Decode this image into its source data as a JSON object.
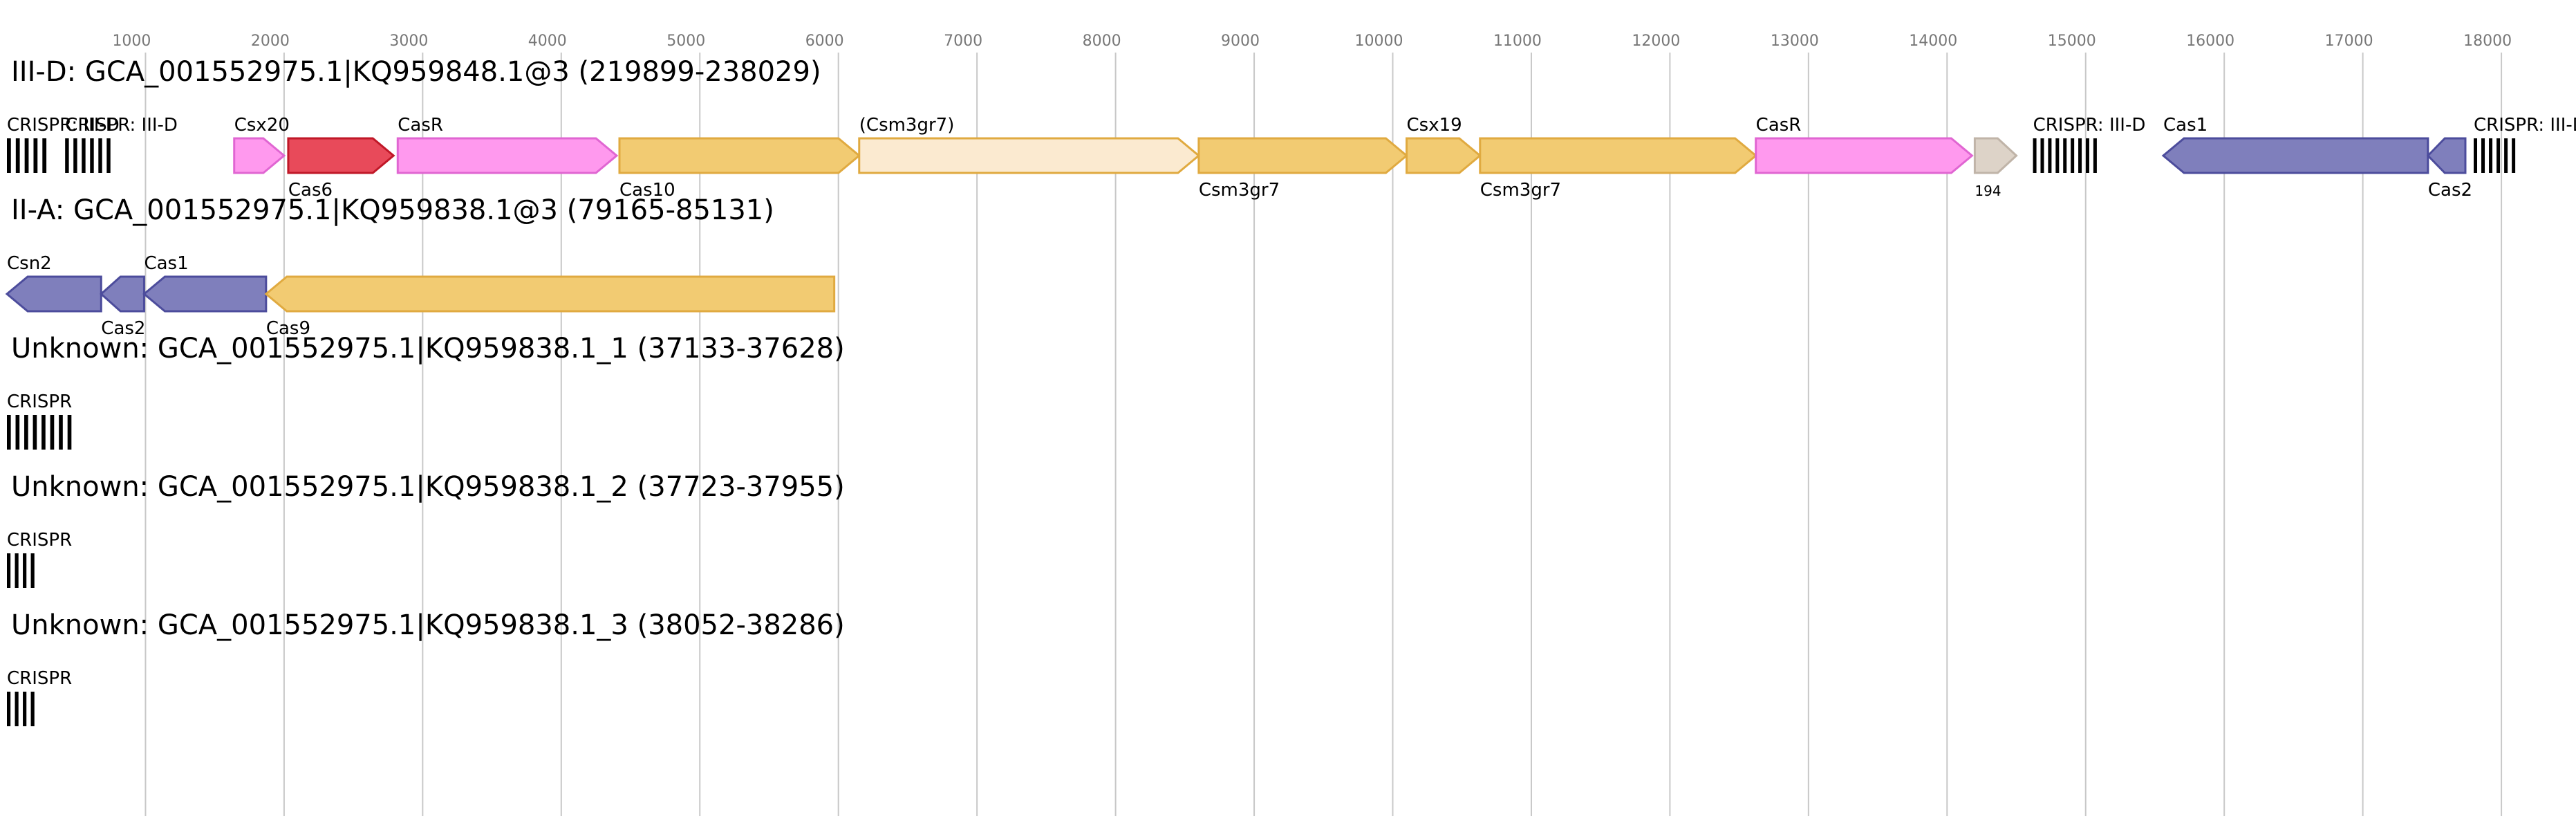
{
  "chart_data": {
    "type": "diagram",
    "x_axis": {
      "ticks": [
        1000,
        2000,
        3000,
        4000,
        5000,
        6000,
        7000,
        8000,
        9000,
        10000,
        11000,
        12000,
        13000,
        14000,
        15000,
        16000,
        17000,
        18000
      ],
      "range": [
        -50,
        18500
      ],
      "grid": true
    },
    "colors": {
      "blue": {
        "fill": "#7f7fbc",
        "stroke": "#4c4c9c"
      },
      "gold": {
        "fill": "#f2cb72",
        "stroke": "#e0aa40"
      },
      "gold_light": {
        "fill": "#fbead0",
        "stroke": "#e0aa40"
      },
      "pink": {
        "fill": "#ff99ee",
        "stroke": "#e066d2"
      },
      "red": {
        "fill": "#e84a5a",
        "stroke": "#c01828"
      },
      "beige": {
        "fill": "#ddd3c8",
        "stroke": "#c0b4a8"
      }
    },
    "rows": [
      {
        "title": "III-D: GCA_001552975.1|KQ959848.1@3 (219899-238029)",
        "features": [
          {
            "kind": "crispr",
            "start": 0,
            "end": 320,
            "bars": 5,
            "label": "CRISPR: III-D",
            "label_pos": "above"
          },
          {
            "kind": "crispr",
            "start": 420,
            "end": 780,
            "bars": 6,
            "label": "CRISPR: III-D",
            "label_pos": "above"
          },
          {
            "kind": "gene",
            "start": 1640,
            "end": 2000,
            "strand": 1,
            "color": "pink",
            "label": "Csx20",
            "label_pos": "above"
          },
          {
            "kind": "gene",
            "start": 2030,
            "end": 2790,
            "strand": 1,
            "color": "red",
            "label": "Cas6",
            "label_pos": "below"
          },
          {
            "kind": "gene",
            "start": 2820,
            "end": 4400,
            "strand": 1,
            "color": "pink",
            "label": "CasR",
            "label_pos": "above"
          },
          {
            "kind": "gene",
            "start": 4420,
            "end": 6150,
            "strand": 1,
            "color": "gold",
            "label": "Cas10",
            "label_pos": "below"
          },
          {
            "kind": "gene",
            "start": 6150,
            "end": 8600,
            "strand": 1,
            "color": "gold_light",
            "label": "(Csm3gr7)",
            "label_pos": "above"
          },
          {
            "kind": "gene",
            "start": 8600,
            "end": 10100,
            "strand": 1,
            "color": "gold",
            "label": "Csm3gr7",
            "label_pos": "below"
          },
          {
            "kind": "gene",
            "start": 10100,
            "end": 10630,
            "strand": 1,
            "color": "gold",
            "label": "Csx19",
            "label_pos": "above"
          },
          {
            "kind": "gene",
            "start": 10630,
            "end": 12620,
            "strand": 1,
            "color": "gold",
            "label": "Csm3gr7",
            "label_pos": "below"
          },
          {
            "kind": "gene",
            "start": 12620,
            "end": 14180,
            "strand": 1,
            "color": "pink",
            "label": "CasR",
            "label_pos": "above"
          },
          {
            "kind": "gene",
            "start": 14200,
            "end": 14500,
            "strand": 1,
            "color": "beige",
            "label": "194",
            "label_pos": "below",
            "small": true
          },
          {
            "kind": "crispr",
            "start": 14620,
            "end": 15110,
            "bars": 9,
            "label": "CRISPR: III-D",
            "label_pos": "above"
          },
          {
            "kind": "gene",
            "start": 15560,
            "end": 17470,
            "strand": -1,
            "color": "blue",
            "label": "Cas1",
            "label_pos": "above"
          },
          {
            "kind": "gene",
            "start": 17470,
            "end": 17740,
            "strand": -1,
            "color": "blue",
            "label": "Cas2",
            "label_pos": "below"
          },
          {
            "kind": "crispr",
            "start": 17800,
            "end": 18130,
            "bars": 6,
            "label": "CRISPR: III-D",
            "label_pos": "above"
          }
        ]
      },
      {
        "title": "II-A: GCA_001552975.1|KQ959838.1@3 (79165-85131)",
        "features": [
          {
            "kind": "gene",
            "start": 0,
            "end": 680,
            "strand": -1,
            "color": "blue",
            "label": "Csn2",
            "label_pos": "above"
          },
          {
            "kind": "gene",
            "start": 680,
            "end": 990,
            "strand": -1,
            "color": "blue",
            "label": "Cas2",
            "label_pos": "below"
          },
          {
            "kind": "gene",
            "start": 990,
            "end": 1870,
            "strand": -1,
            "color": "blue",
            "label": "Cas1",
            "label_pos": "above"
          },
          {
            "kind": "gene",
            "start": 1870,
            "end": 5970,
            "strand": -1,
            "color": "gold",
            "label": "Cas9",
            "label_pos": "below"
          }
        ]
      },
      {
        "title": "Unknown: GCA_001552975.1|KQ959838.1_1 (37133-37628)",
        "features": [
          {
            "kind": "crispr",
            "start": 0,
            "end": 500,
            "bars": 8,
            "label": "CRISPR",
            "label_pos": "above"
          }
        ]
      },
      {
        "title": "Unknown: GCA_001552975.1|KQ959838.1_2 (37723-37955)",
        "features": [
          {
            "kind": "crispr",
            "start": 0,
            "end": 230,
            "bars": 4,
            "label": "CRISPR",
            "label_pos": "above"
          }
        ]
      },
      {
        "title": "Unknown: GCA_001552975.1|KQ959838.1_3 (38052-38286)",
        "features": [
          {
            "kind": "crispr",
            "start": 0,
            "end": 230,
            "bars": 4,
            "label": "CRISPR",
            "label_pos": "above"
          }
        ]
      }
    ]
  }
}
